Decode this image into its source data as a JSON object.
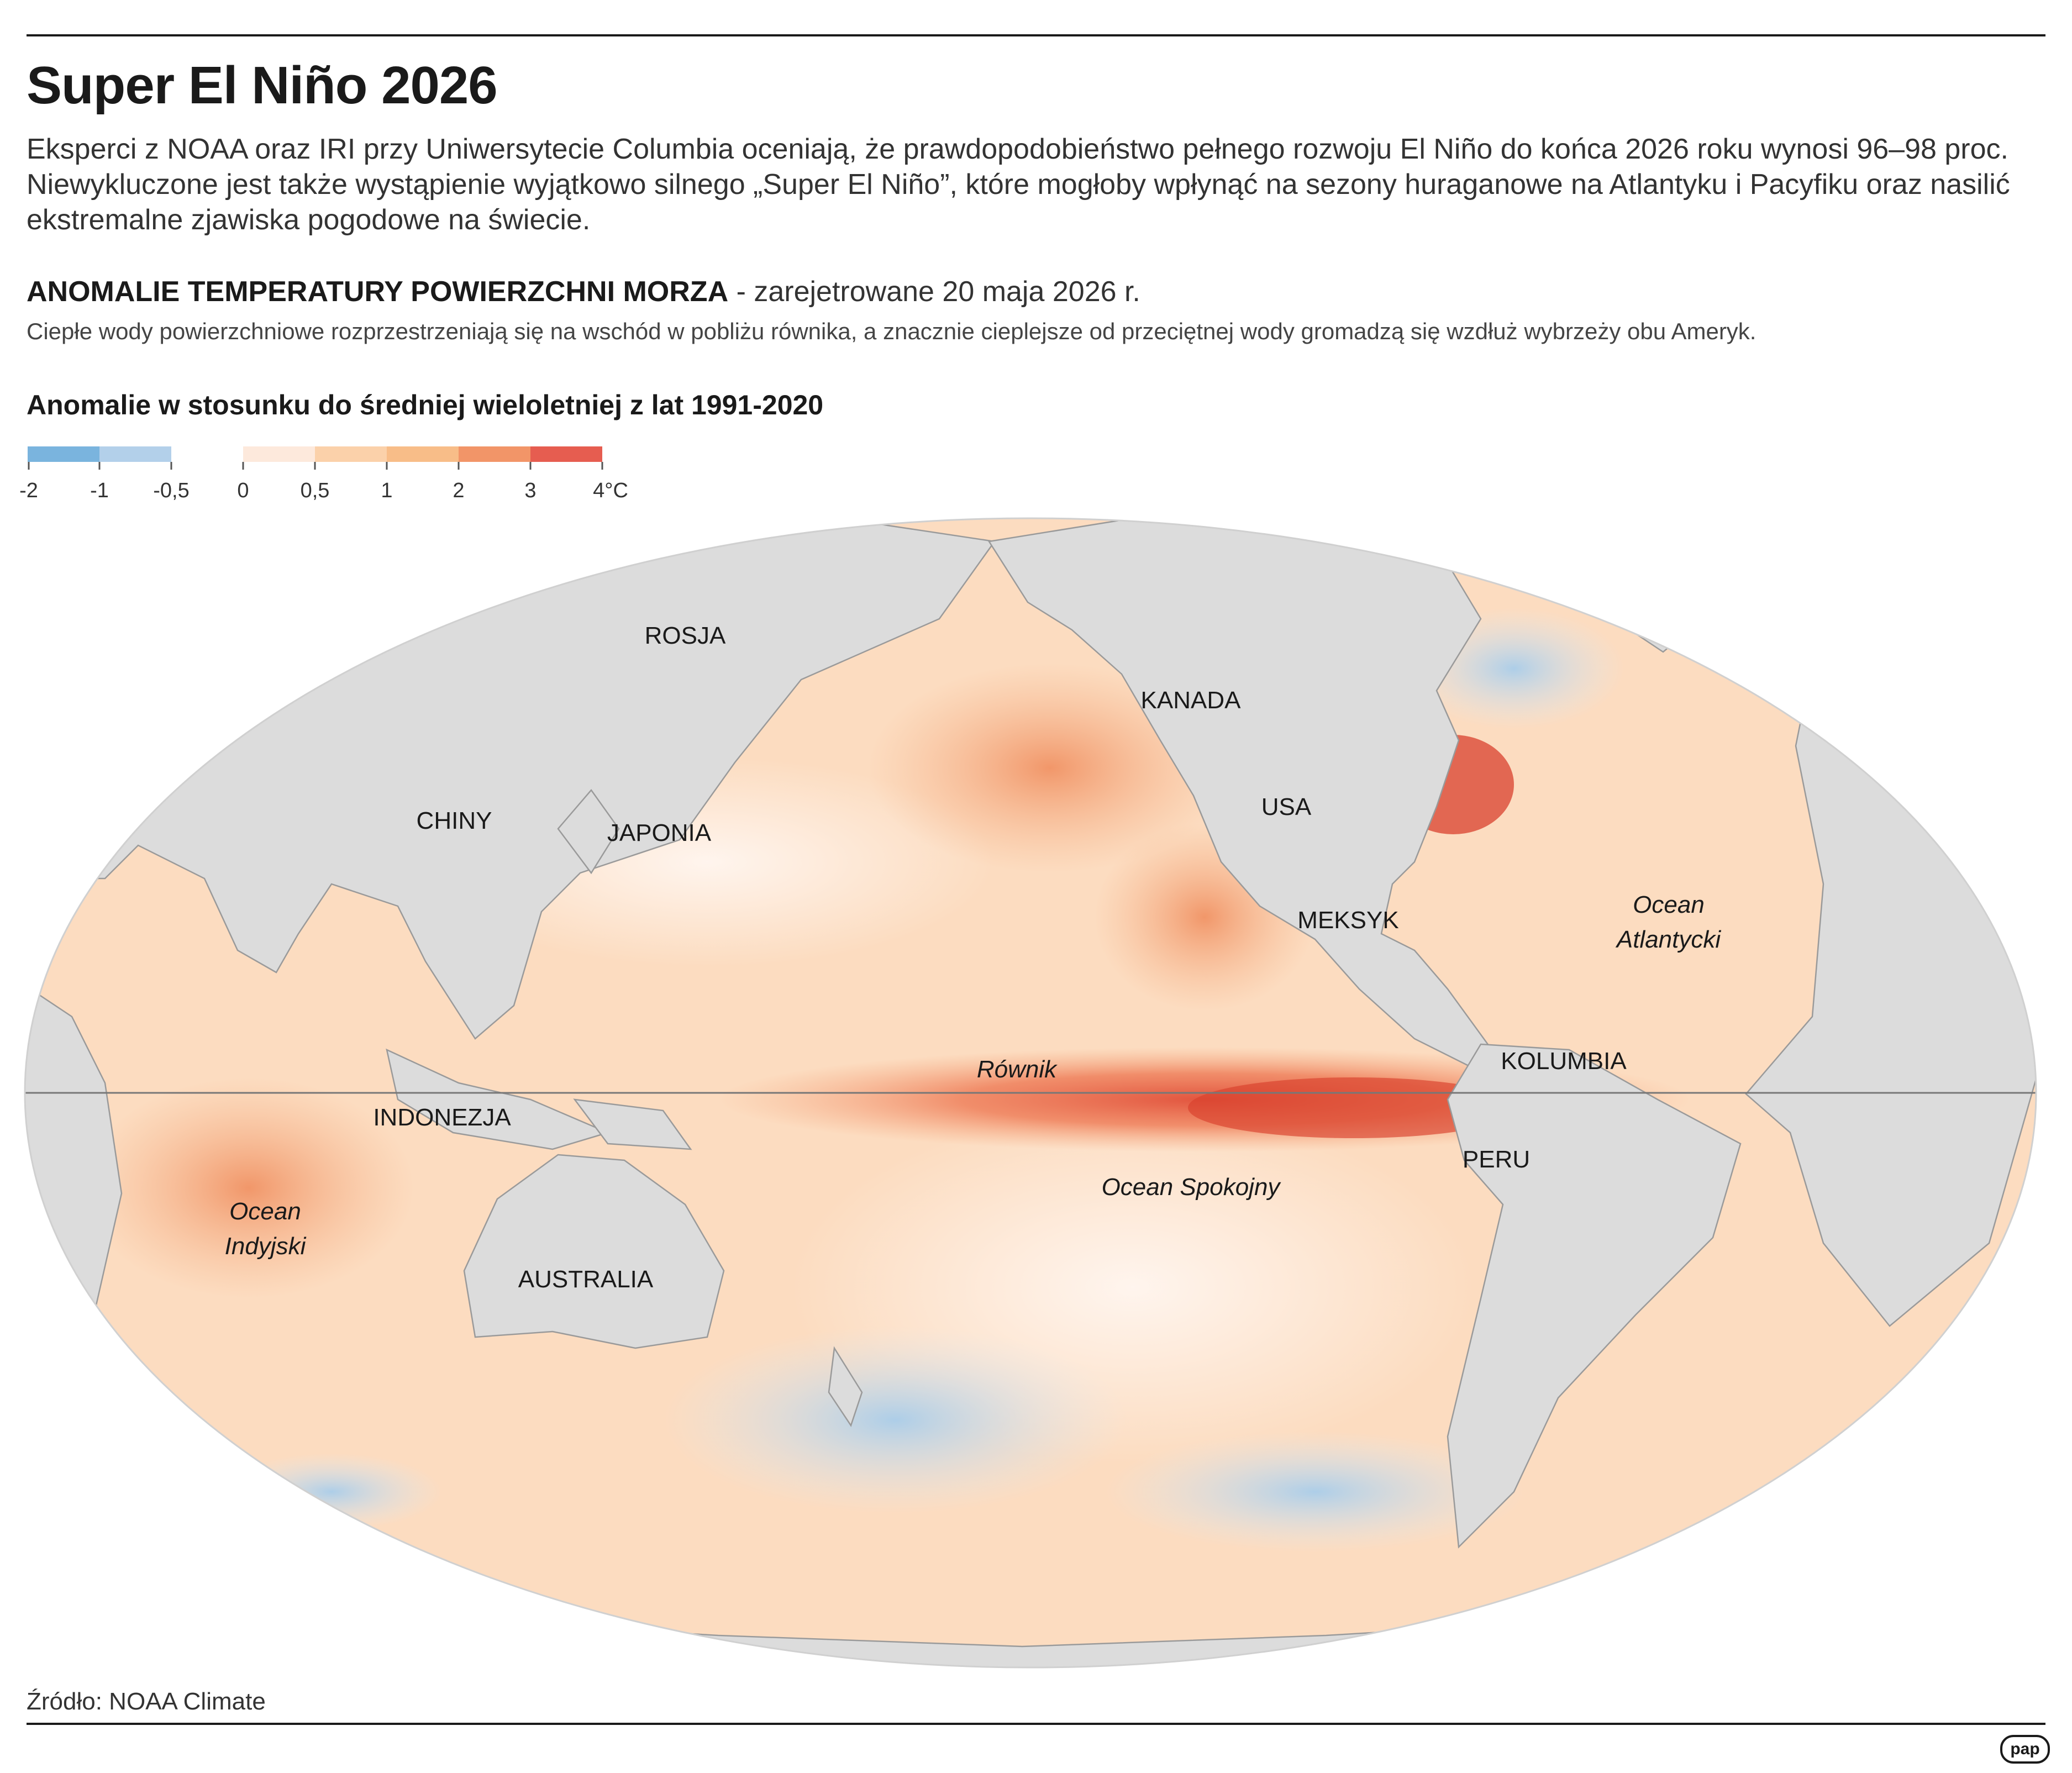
{
  "header": {
    "title": "Super El Niño 2026",
    "lead": "Eksperci z NOAA oraz IRI przy Uniwersytecie Columbia oceniają, że prawdopodobieństwo pełnego rozwoju El Niño do końca 2026 roku wynosi 96–98 proc. Niewykluczone jest także wystąpienie wyjątkowo silnego „Super El Niño”, które mogłoby wpłynąć na sezony huraganowe na Atlantyku i Pacyfiku oraz nasilić ekstremalne zjawiska pogodowe na świecie.",
    "section_title": "ANOMALIE TEMPERATURY POWIERZCHNI MORZA",
    "section_date": " - zarejetrowane 20 maja 2026 r.",
    "subtitle": "Ciepłe wody powierzchniowe rozprzestrzeniają się na wschód w pobliżu równika, a znacznie cieplejsze od przeciętnej wody gromadzą się wzdłuż wybrzeży obu Ameryk."
  },
  "legend": {
    "title": "Anomalie w stosunku do średniej wieloletniej z lat 1991-2020",
    "negative": [
      {
        "from": "-2",
        "to": "-1",
        "color": "#7ab4de"
      },
      {
        "from": "-1",
        "to": "-0,5",
        "color": "#b3d0ea"
      }
    ],
    "positive": [
      {
        "from": "0",
        "to": "0,5",
        "color": "#fde9dc"
      },
      {
        "from": "0,5",
        "to": "1",
        "color": "#fbd1aa"
      },
      {
        "from": "1",
        "to": "2",
        "color": "#f8bd88"
      },
      {
        "from": "2",
        "to": "3",
        "color": "#f29568"
      },
      {
        "from": "3",
        "to": "4°C",
        "color": "#e65d50"
      }
    ]
  },
  "map": {
    "land_color": "#dcdcdc",
    "ocean_base_color": "#fcdcc0",
    "labels": {
      "rosja": "ROSJA",
      "kanada": "KANADA",
      "chiny": "CHINY",
      "japonia": "JAPONIA",
      "usa": "USA",
      "meksyk": "MEKSYK",
      "ocean_atlantycki_1": "Ocean",
      "ocean_atlantycki_2": "Atlantycki",
      "rownik": "Równik",
      "kolumbia": "KOLUMBIA",
      "indonezja": "INDONEZJA",
      "peru": "PERU",
      "ocean_spokojny": "Ocean Spokojny",
      "ocean_indyjski_1": "Ocean",
      "ocean_indyjski_2": "Indyjski",
      "australia": "AUSTRALIA"
    }
  },
  "footer": {
    "source": "Źródło: NOAA Climate",
    "logo": "pap"
  }
}
